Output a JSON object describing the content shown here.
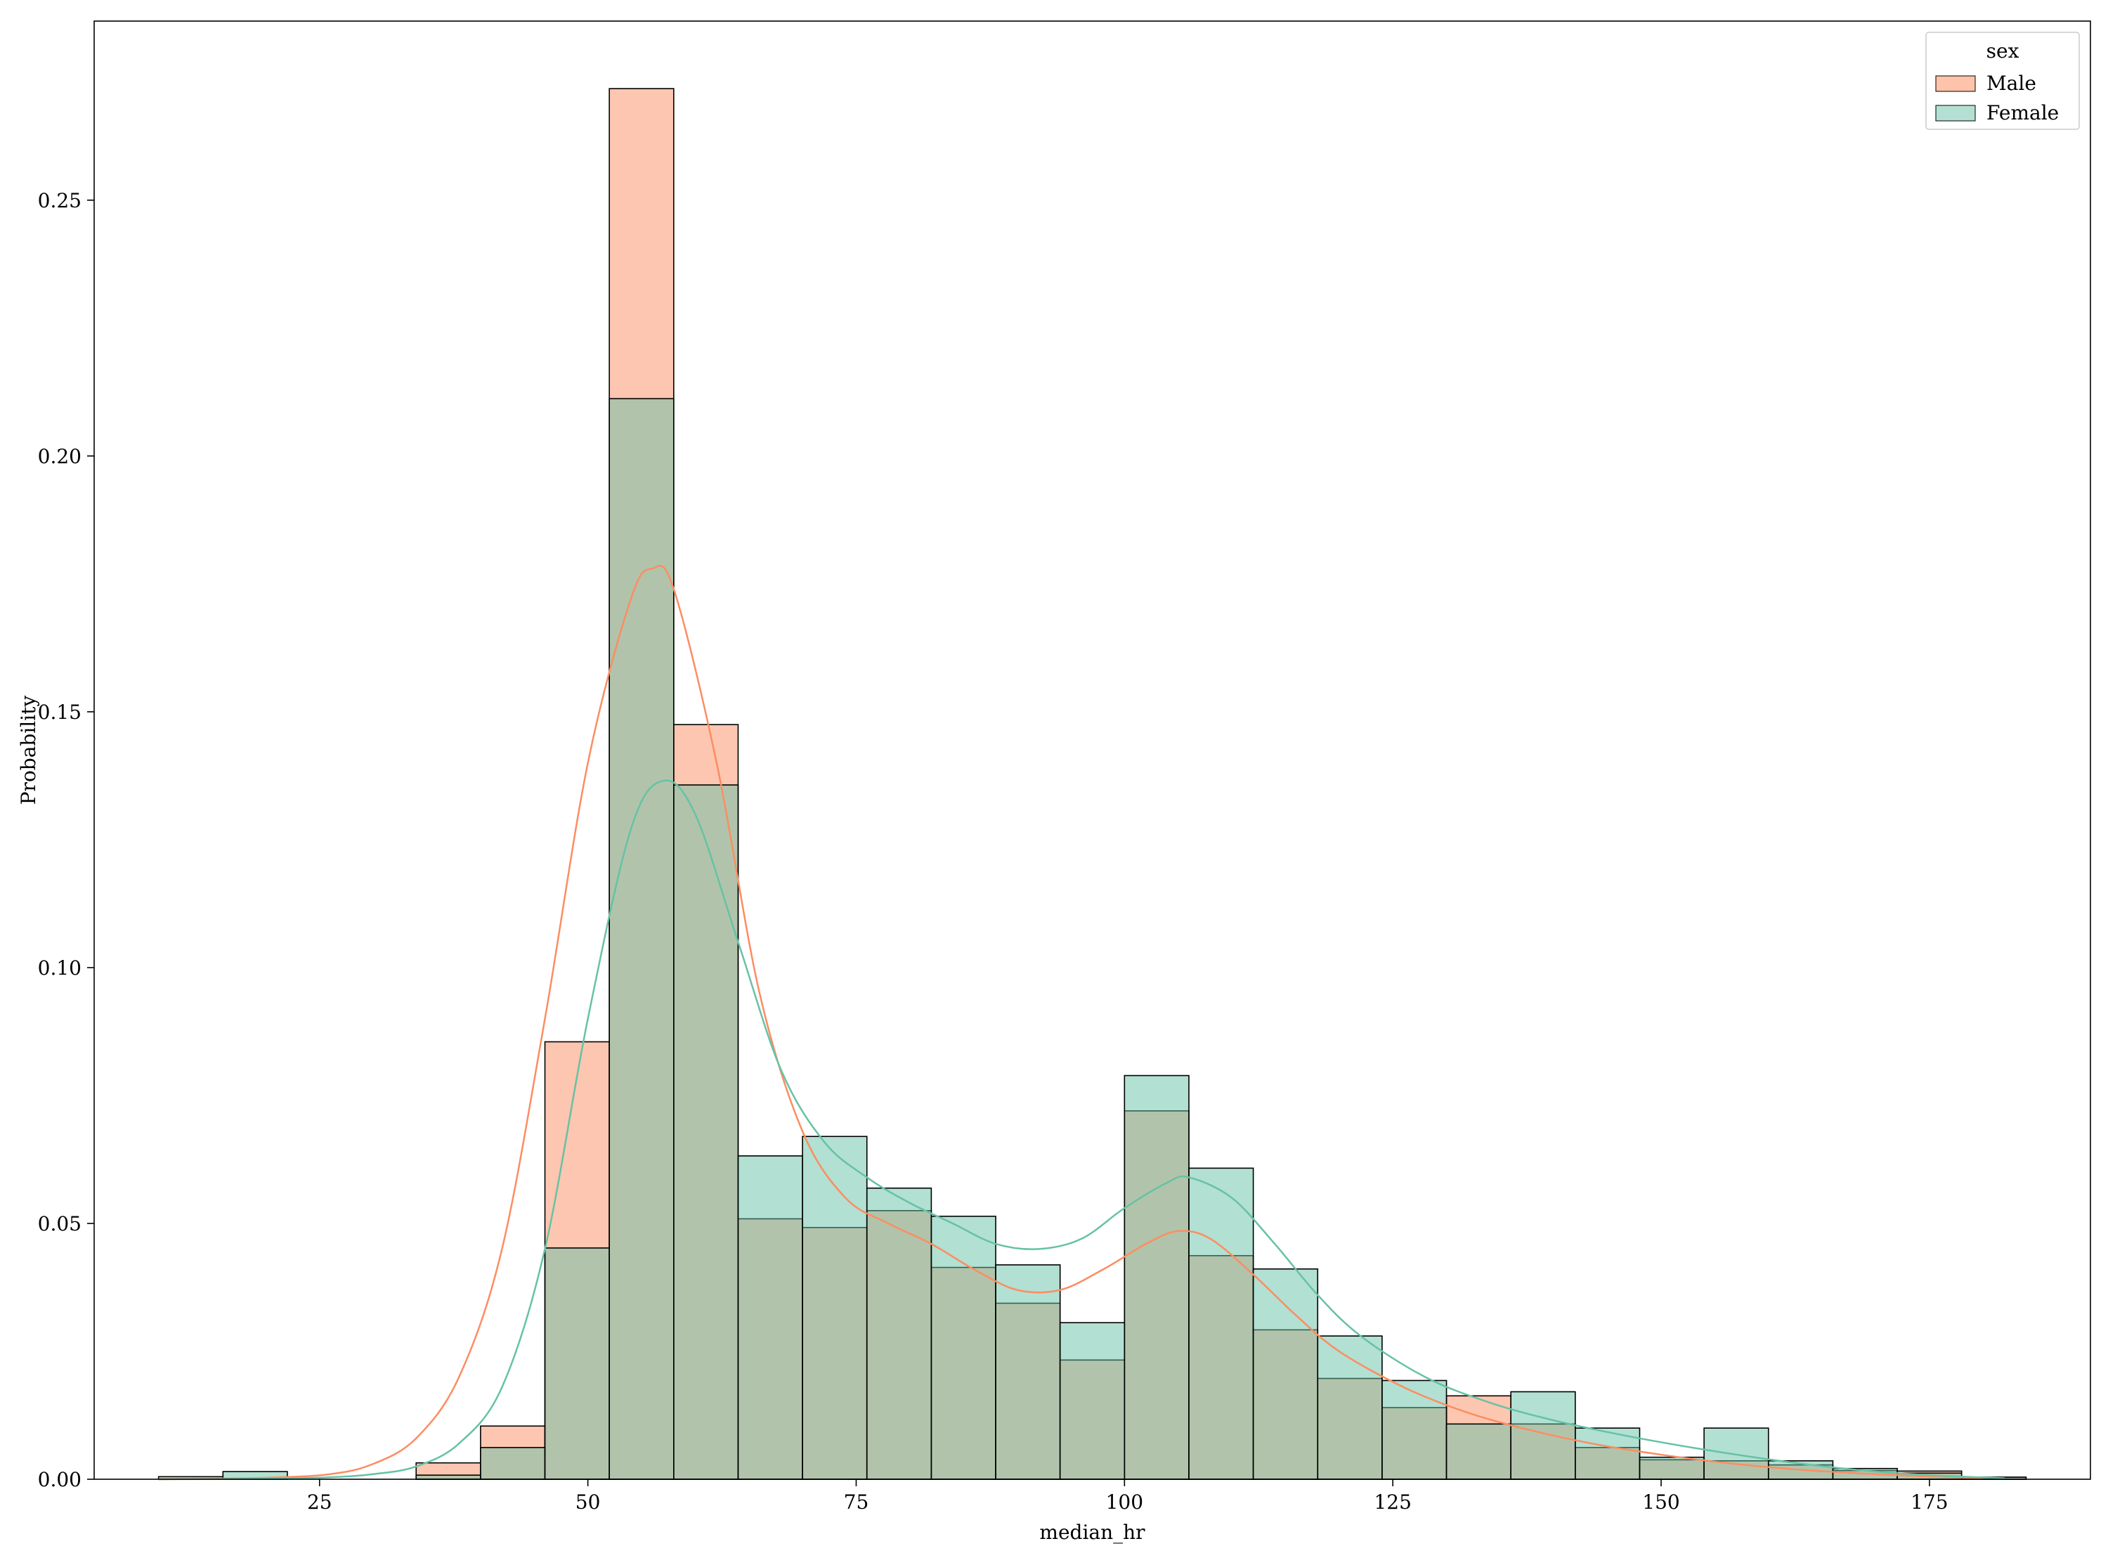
{
  "chart_data": {
    "type": "histogram",
    "stat": "probability",
    "xlabel": "median_hr",
    "ylabel": "Probability",
    "xlim": [
      4,
      190
    ],
    "ylim": [
      0,
      0.285
    ],
    "xticks": [
      25,
      50,
      75,
      100,
      125,
      150,
      175
    ],
    "yticks": [
      0.0,
      0.05,
      0.1,
      0.15,
      0.2,
      0.25
    ],
    "xtick_labels": [
      "25",
      "50",
      "75",
      "100",
      "125",
      "150",
      "175"
    ],
    "ytick_labels": [
      "0.00",
      "0.05",
      "0.10",
      "0.15",
      "0.20",
      "0.25"
    ],
    "bin_edges": [
      10,
      16,
      22,
      28,
      34,
      40,
      46,
      52,
      58,
      64,
      70,
      76,
      82,
      88,
      94,
      100,
      106,
      112,
      118,
      124,
      130,
      136,
      142,
      148,
      154,
      160,
      166,
      172,
      178,
      184
    ],
    "legend": {
      "title": "sex",
      "position": "upper right"
    },
    "series": [
      {
        "name": "Male",
        "color": "#fc8d62",
        "fill": "#fdc3ab",
        "values": [
          0.0005,
          0.0,
          0.0,
          0.0,
          0.0032,
          0.0104,
          0.0855,
          0.2718,
          0.1475,
          0.0509,
          0.0492,
          0.0525,
          0.0414,
          0.0344,
          0.0233,
          0.072,
          0.0437,
          0.0292,
          0.0197,
          0.014,
          0.0163,
          0.0108,
          0.0062,
          0.0038,
          0.0036,
          0.0028,
          0.0017,
          0.0016,
          0.0004
        ],
        "kde": {
          "x": [
            10,
            20,
            26,
            30,
            34,
            38,
            42,
            46,
            50,
            54,
            56,
            58,
            62,
            66,
            70,
            74,
            78,
            82,
            86,
            90,
            94,
            98,
            102,
            105,
            108,
            112,
            116,
            120,
            126,
            132,
            138,
            144,
            150,
            156,
            162,
            168,
            174,
            180
          ],
          "y": [
            0.0,
            0.0003,
            0.001,
            0.003,
            0.008,
            0.02,
            0.045,
            0.09,
            0.14,
            0.172,
            0.178,
            0.174,
            0.14,
            0.095,
            0.068,
            0.055,
            0.05,
            0.046,
            0.041,
            0.037,
            0.037,
            0.041,
            0.046,
            0.0485,
            0.047,
            0.04,
            0.032,
            0.025,
            0.018,
            0.013,
            0.0095,
            0.0068,
            0.0048,
            0.0032,
            0.002,
            0.0012,
            0.0006,
            0.0002
          ]
        }
      },
      {
        "name": "Female",
        "color": "#66c2a5",
        "fill": "#b3e0d2",
        "values": [
          0.0,
          0.0015,
          0.0,
          0.0,
          0.0008,
          0.0062,
          0.0452,
          0.2112,
          0.1357,
          0.0632,
          0.067,
          0.0569,
          0.0514,
          0.0419,
          0.0306,
          0.0789,
          0.0608,
          0.0411,
          0.028,
          0.0193,
          0.0108,
          0.0171,
          0.01,
          0.0043,
          0.01,
          0.0036,
          0.0021,
          0.0012,
          0.0004
        ],
        "kde": {
          "x": [
            10,
            20,
            26,
            30,
            34,
            38,
            42,
            46,
            50,
            54,
            57,
            60,
            64,
            68,
            72,
            76,
            80,
            84,
            88,
            92,
            96,
            100,
            104,
            106,
            110,
            114,
            118,
            122,
            128,
            134,
            140,
            146,
            152,
            158,
            164,
            170,
            176,
            182
          ],
          "y": [
            0.0,
            0.0001,
            0.0004,
            0.001,
            0.0025,
            0.007,
            0.018,
            0.045,
            0.09,
            0.127,
            0.1365,
            0.13,
            0.105,
            0.08,
            0.066,
            0.059,
            0.054,
            0.05,
            0.046,
            0.045,
            0.047,
            0.053,
            0.058,
            0.059,
            0.055,
            0.046,
            0.036,
            0.028,
            0.02,
            0.015,
            0.0115,
            0.0088,
            0.0065,
            0.0045,
            0.0028,
            0.0015,
            0.0007,
            0.0002
          ]
        }
      }
    ]
  }
}
